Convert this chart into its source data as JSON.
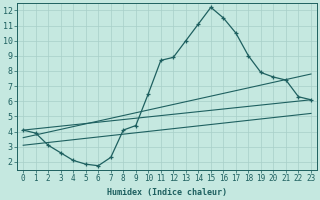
{
  "xlabel": "Humidex (Indice chaleur)",
  "bg_color": "#c5e8e0",
  "line_color": "#1e6060",
  "grid_color": "#a8cfc8",
  "xlim": [
    -0.5,
    23.5
  ],
  "ylim": [
    1.5,
    12.5
  ],
  "xticks": [
    0,
    1,
    2,
    3,
    4,
    5,
    6,
    7,
    8,
    9,
    10,
    11,
    12,
    13,
    14,
    15,
    16,
    17,
    18,
    19,
    20,
    21,
    22,
    23
  ],
  "yticks": [
    2,
    3,
    4,
    5,
    6,
    7,
    8,
    9,
    10,
    11,
    12
  ],
  "curve_x": [
    0,
    1,
    2,
    3,
    4,
    5,
    6,
    7,
    8,
    9,
    10,
    11,
    12,
    13,
    14,
    15,
    16,
    17,
    18,
    19,
    20,
    21,
    22,
    23
  ],
  "curve_y": [
    4.1,
    3.9,
    3.1,
    2.6,
    2.1,
    1.85,
    1.75,
    2.3,
    4.1,
    4.4,
    6.5,
    8.7,
    8.9,
    10.0,
    11.1,
    12.2,
    11.5,
    10.5,
    9.0,
    7.9,
    7.6,
    7.4,
    6.3,
    6.1
  ],
  "line1_x": [
    0,
    23
  ],
  "line1_y": [
    4.1,
    6.1
  ],
  "line2_x": [
    0,
    23
  ],
  "line2_y": [
    3.6,
    7.8
  ],
  "line3_x": [
    0,
    23
  ],
  "line3_y": [
    3.1,
    5.2
  ],
  "xlabel_fontsize": 6.0,
  "tick_fontsize": 5.5
}
